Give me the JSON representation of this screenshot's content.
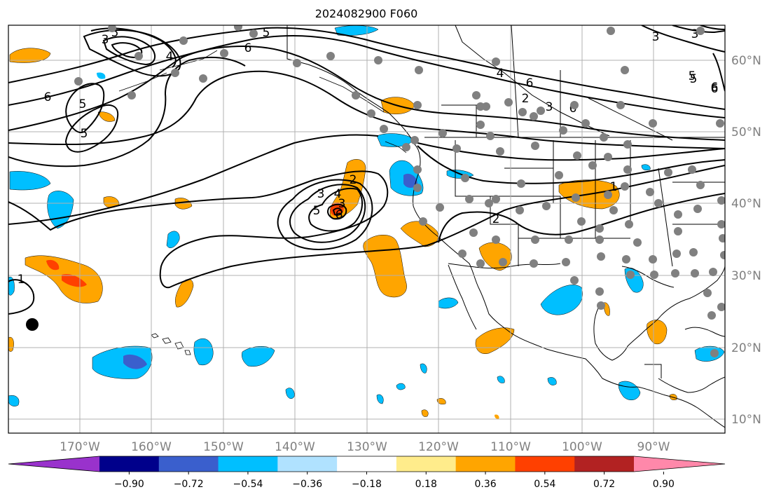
{
  "title": "2024082900 F060",
  "lon_labels": [
    "170°W",
    "160°W",
    "150°W",
    "140°W",
    "130°W",
    "120°W",
    "110°W",
    "100°W",
    "90°W"
  ],
  "lat_labels": [
    "60°N",
    "50°N",
    "40°N",
    "30°N",
    "20°N",
    "10°N"
  ],
  "contour_labels": [
    "6",
    "5",
    "5",
    "6",
    "5",
    "5",
    "4",
    "3",
    "6",
    "6",
    "4",
    "3",
    "6",
    "2",
    "3",
    "5",
    "3",
    "2",
    "3",
    "4",
    "5",
    "6",
    "2",
    "1",
    "1",
    "3",
    "5",
    "6"
  ],
  "colorbar": {
    "ticks": [
      "−0.90",
      "−0.72",
      "−0.54",
      "−0.36",
      "−0.18",
      "0.18",
      "0.36",
      "0.54",
      "0.72",
      "0.90"
    ],
    "colors": [
      "#9932cc",
      "#00008b",
      "#3a5fcd",
      "#00bfff",
      "#b0e2ff",
      "#ffffff",
      "#ffec8b",
      "#ffa500",
      "#ff4000",
      "#b22222",
      "#ff88aa"
    ]
  },
  "colors": {
    "contour": "#000000",
    "station_dot": "#808080",
    "marker": "#000000",
    "grid": "#b0b0b0"
  }
}
